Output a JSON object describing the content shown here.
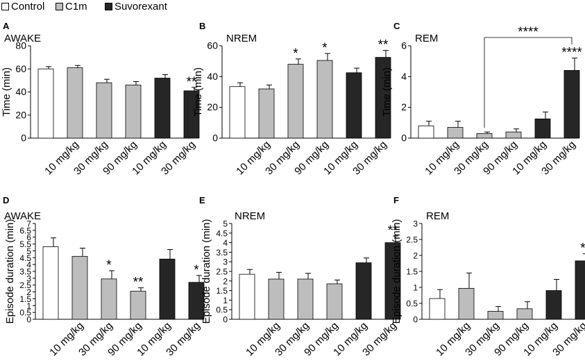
{
  "legend": [
    {
      "label": "Control",
      "color": "#ffffff"
    },
    {
      "label": "C1m",
      "color": "#bdbdbd"
    },
    {
      "label": "Suvorexant",
      "color": "#262626"
    }
  ],
  "chart_data": [
    {
      "panel": "A",
      "type": "bar",
      "title": "AWAKE",
      "ylabel": "Time (min)",
      "ylim": [
        0,
        80
      ],
      "yticks": [
        0,
        20,
        40,
        60,
        80
      ],
      "categories": [
        "",
        "10 mg/kg",
        "30 mg/kg",
        "90 mg/kg",
        "10 mg/kg",
        "30 mg/kg"
      ],
      "groups": [
        "Control",
        "C1m",
        "C1m",
        "C1m",
        "Suvorexant",
        "Suvorexant"
      ],
      "values": [
        60,
        61,
        48,
        46,
        52,
        41
      ],
      "errors": [
        2,
        2,
        3,
        3,
        3,
        3
      ],
      "annotations": [
        "",
        "",
        "",
        "",
        "",
        "**"
      ]
    },
    {
      "panel": "B",
      "type": "bar",
      "title": "NREM",
      "ylabel": "Time (min)",
      "ylim": [
        0,
        60
      ],
      "yticks": [
        0,
        20,
        40,
        60
      ],
      "categories": [
        "",
        "10 mg/kg",
        "30 mg/kg",
        "90 mg/kg",
        "10 mg/kg",
        "30 mg/kg"
      ],
      "groups": [
        "Control",
        "C1m",
        "C1m",
        "C1m",
        "Suvorexant",
        "Suvorexant"
      ],
      "values": [
        33.5,
        32,
        48,
        50.5,
        42.5,
        52.5
      ],
      "errors": [
        2.5,
        2.5,
        3.5,
        4.5,
        3,
        4.5
      ],
      "annotations": [
        "",
        "",
        "*",
        "*",
        "",
        "**"
      ]
    },
    {
      "panel": "C",
      "type": "bar",
      "title": "REM",
      "ylabel": "Time (min)",
      "ylim": [
        0,
        6
      ],
      "yticks": [
        0,
        2,
        4,
        6
      ],
      "categories": [
        "",
        "10 mg/kg",
        "30 mg/kg",
        "90 mg/kg",
        "10 mg/kg",
        "30 mg/kg"
      ],
      "groups": [
        "Control",
        "C1m",
        "C1m",
        "C1m",
        "Suvorexant",
        "Suvorexant"
      ],
      "values": [
        0.8,
        0.7,
        0.3,
        0.4,
        1.25,
        4.4
      ],
      "errors": [
        0.3,
        0.4,
        0.1,
        0.2,
        0.45,
        0.8
      ],
      "annotations": [
        "",
        "",
        "",
        "",
        "",
        "****"
      ],
      "bracket": {
        "from": 2,
        "to": 5,
        "label": "****"
      }
    },
    {
      "panel": "D",
      "type": "bar",
      "title": "AWAKE",
      "ylabel": "Episode duration (min)",
      "ylim": [
        0,
        7
      ],
      "yticks": [
        0,
        0.5,
        1,
        1.5,
        2,
        2.5,
        3,
        3.5,
        4,
        4.5,
        5,
        5.5,
        6,
        6.5,
        7
      ],
      "yticklabels": [
        "0",
        "0.5",
        "1",
        "1.5",
        "2",
        "2.5",
        "3",
        "3.5",
        "4",
        "4.5",
        "5",
        "5.5",
        "6",
        "6.5",
        "7"
      ],
      "categories": [
        "",
        "10 mg/kg",
        "30 mg/kg",
        "90 mg/kg",
        "10 mg/kg",
        "30 mg/kg"
      ],
      "groups": [
        "Control",
        "C1m",
        "C1m",
        "C1m",
        "Suvorexant",
        "Suvorexant"
      ],
      "values": [
        5.3,
        4.6,
        2.95,
        2.05,
        4.4,
        2.7
      ],
      "errors": [
        0.65,
        0.6,
        0.6,
        0.25,
        0.7,
        0.5
      ],
      "annotations": [
        "",
        "",
        "*",
        "**",
        "",
        "*"
      ]
    },
    {
      "panel": "E",
      "type": "bar",
      "title": "NREM",
      "ylabel": "Episode duration (min)",
      "ylim": [
        0,
        5
      ],
      "yticks": [
        0,
        0.5,
        1,
        1.5,
        2,
        2.5,
        3,
        3.5,
        4,
        4.5,
        5
      ],
      "yticklabels": [
        "0",
        "0.5",
        "1",
        "1.5",
        "2",
        "2.5",
        "3",
        "3.5",
        "4",
        "4.5",
        "5"
      ],
      "categories": [
        "",
        "10 mg/kg",
        "30 mg/kg",
        "90 mg/kg",
        "10 mg/kg",
        "30 mg/kg"
      ],
      "groups": [
        "Control",
        "C1m",
        "C1m",
        "C1m",
        "Suvorexant",
        "Suvorexant"
      ],
      "values": [
        2.35,
        2.1,
        2.1,
        1.85,
        2.95,
        4.0
      ],
      "errors": [
        0.25,
        0.35,
        0.3,
        0.2,
        0.25,
        0.35
      ],
      "annotations": [
        "",
        "",
        "",
        "",
        "",
        "**"
      ]
    },
    {
      "panel": "F",
      "type": "bar",
      "title": "REM",
      "ylabel": "Episode duration (min)",
      "ylim": [
        0,
        3
      ],
      "yticks": [
        0,
        0.5,
        1,
        1.5,
        2,
        2.5,
        3
      ],
      "yticklabels": [
        "0",
        "0.5",
        "1",
        "1.5",
        "2",
        "2.5",
        "3"
      ],
      "categories": [
        "",
        "10 mg/kg",
        "30 mg/kg",
        "90 mg/kg",
        "10 mg/kg",
        "30 mg/kg"
      ],
      "groups": [
        "Control",
        "C1m",
        "C1m",
        "C1m",
        "Suvorexant",
        "Suvorexant"
      ],
      "values": [
        0.65,
        0.97,
        0.25,
        0.33,
        0.9,
        1.83
      ],
      "errors": [
        0.28,
        0.48,
        0.15,
        0.22,
        0.35,
        0.22
      ],
      "annotations": [
        "",
        "",
        "",
        "",
        "",
        "*"
      ]
    }
  ]
}
